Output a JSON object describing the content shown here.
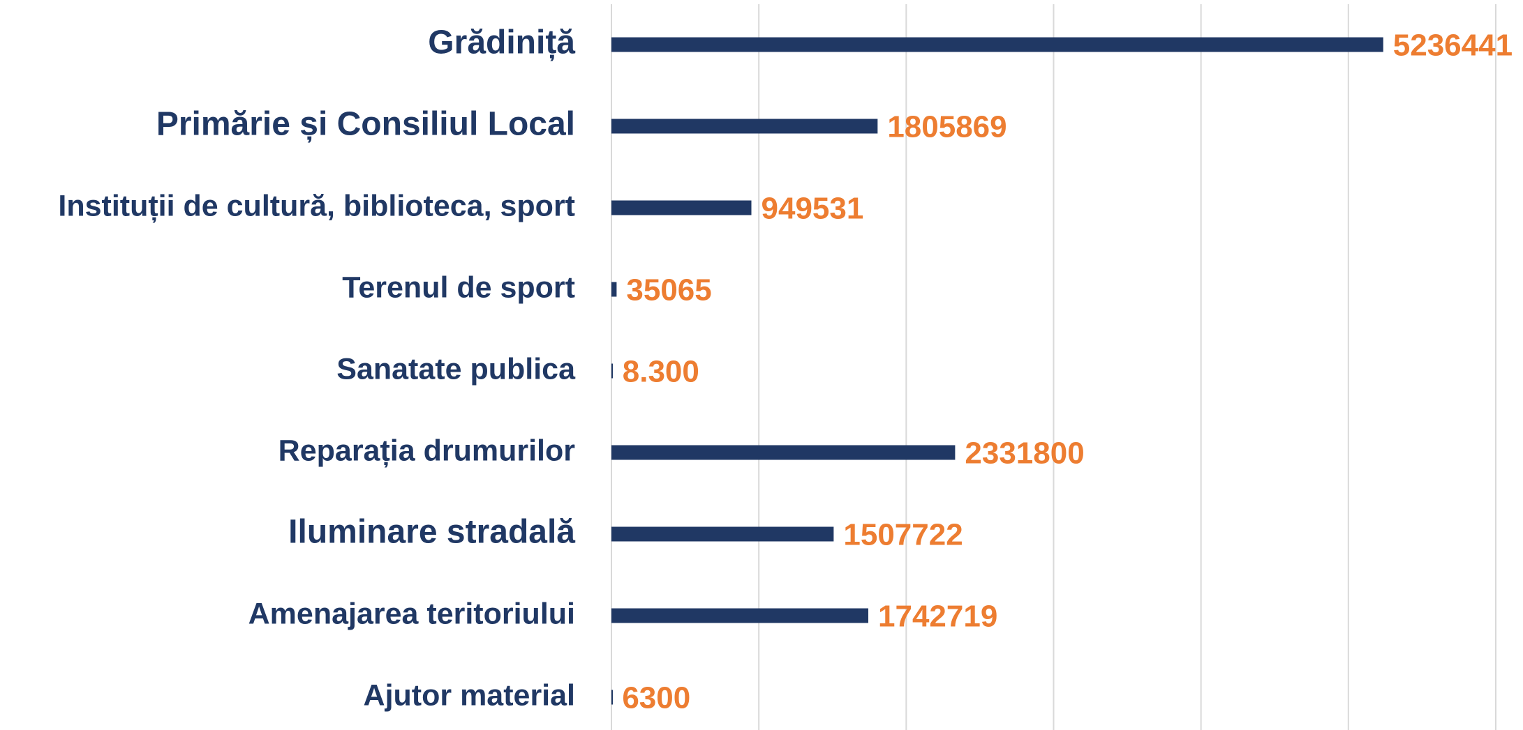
{
  "chart_data": {
    "type": "hbar",
    "categories": [
      "Grădiniță",
      "Primărie și Consiliul Local",
      "Instituții de cultură, biblioteca, sport",
      "Terenul de sport",
      "Sanatate publica",
      "Reparația drumurilor",
      "Iluminare stradală",
      "Amenajarea teritoriului",
      "Ajutor material"
    ],
    "values": [
      5236441,
      1805869,
      949531,
      35065,
      8300,
      2331800,
      1507722,
      1742719,
      6300
    ],
    "value_labels": [
      "5236441",
      "1805869",
      "949531",
      "35065",
      "8.300",
      "2331800",
      "1507722",
      "1742719",
      "6300"
    ],
    "color": "#203864",
    "label_color": "#ED7D31",
    "xlim": [
      0,
      6000000
    ],
    "xticks": [
      0,
      1000000,
      2000000,
      3000000,
      4000000,
      5000000,
      6000000
    ],
    "grid": true
  }
}
